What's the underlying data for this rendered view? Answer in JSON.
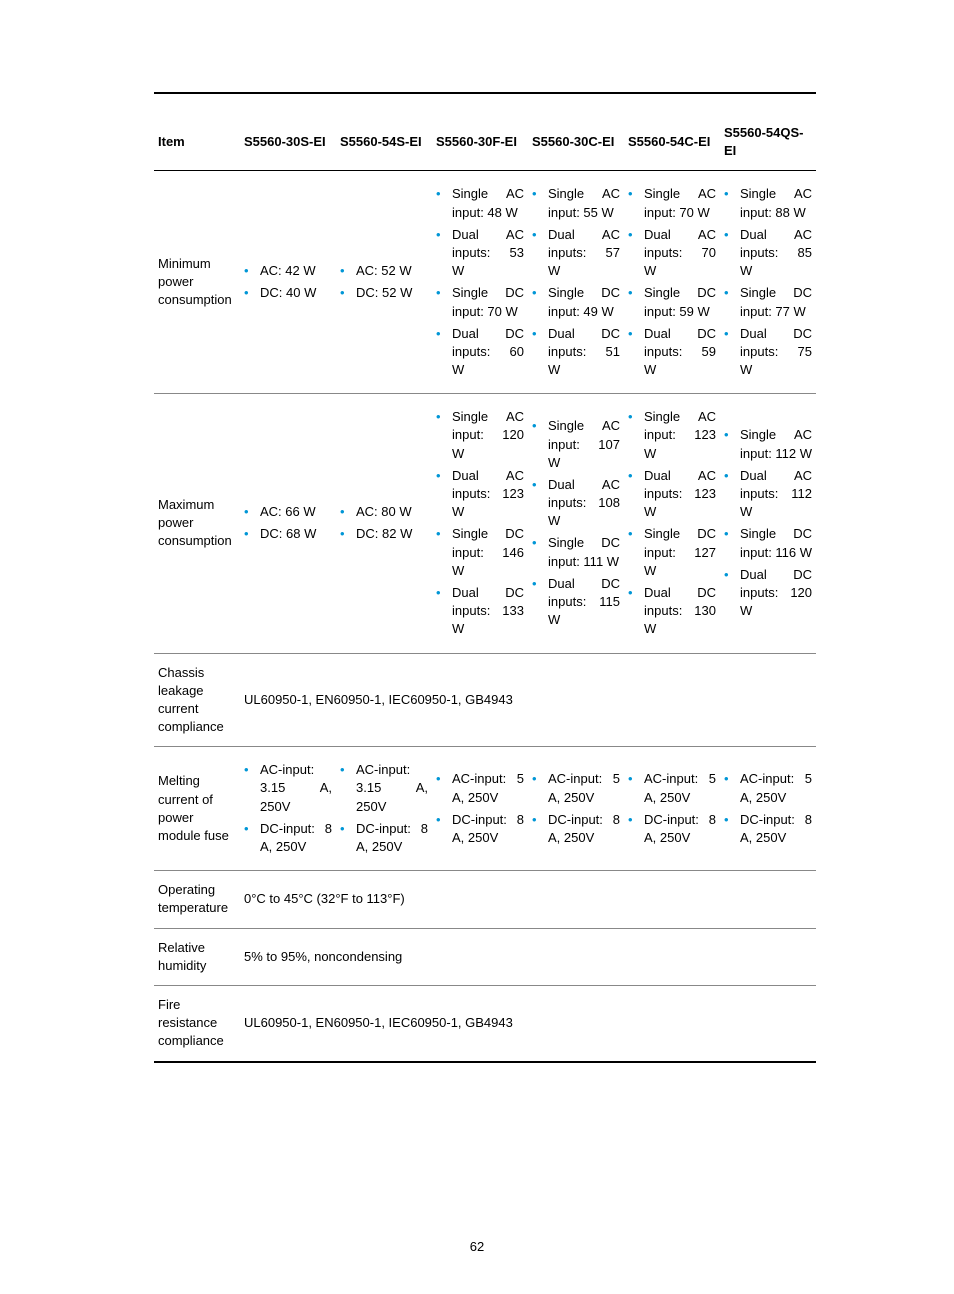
{
  "page_number": "62",
  "bullet_color": "#0096d6",
  "text_color": "#000000",
  "background_color": "#ffffff",
  "headers": {
    "item": "Item",
    "c1": "S5560-30S-EI",
    "c2": "S5560-54S-EI",
    "c3": "S5560-30F-EI",
    "c4": "S5560-30C-EI",
    "c5": "S5560-54C-EI",
    "c6": "S5560-54QS-EI"
  },
  "rows": {
    "min_power": {
      "label": "Minimum power consumption",
      "c1": [
        "AC: 42 W",
        "DC: 40 W"
      ],
      "c2": [
        "AC: 52 W",
        "DC: 52 W"
      ],
      "c3": [
        "Single AC input: 48 W",
        "Dual AC inputs: 53 W",
        "Single DC input: 70 W",
        "Dual DC inputs: 60 W"
      ],
      "c4": [
        "Single AC input: 55 W",
        "Dual AC inputs: 57 W",
        "Single DC input: 49 W",
        "Dual DC inputs: 51 W"
      ],
      "c5": [
        "Single AC input: 70 W",
        "Dual AC inputs: 70 W",
        "Single DC input: 59 W",
        "Dual DC inputs: 59 W"
      ],
      "c6": [
        "Single AC input: 88 W",
        "Dual AC inputs: 85 W",
        "Single DC input: 77 W",
        "Dual DC inputs: 75 W"
      ]
    },
    "max_power": {
      "label": "Maximum power consumption",
      "c1": [
        "AC: 66 W",
        "DC: 68 W"
      ],
      "c2": [
        "AC: 80 W",
        "DC: 82 W"
      ],
      "c3": [
        "Single AC input: 120 W",
        "Dual AC inputs: 123 W",
        "Single DC input: 146 W",
        "Dual DC inputs: 133 W"
      ],
      "c4": [
        "Single AC input: 107 W",
        "Dual AC inputs: 108 W",
        "Single DC input: 111 W",
        "Dual DC inputs: 115 W"
      ],
      "c5": [
        "Single AC input: 123 W",
        "Dual AC inputs: 123 W",
        "Single DC input: 127 W",
        "Dual DC inputs: 130 W"
      ],
      "c6": [
        "Single AC input: 112 W",
        "Dual AC inputs: 112 W",
        "Single DC input: 116 W",
        "Dual DC inputs: 120 W"
      ]
    },
    "leakage": {
      "label": "Chassis leakage current compliance",
      "value": "UL60950-1, EN60950-1, IEC60950-1, GB4943"
    },
    "fuse": {
      "label": "Melting current of power module fuse",
      "c1": [
        "AC-input: 3.15 A, 250V",
        "DC-input: 8 A, 250V"
      ],
      "c2": [
        "AC-input: 3.15 A, 250V",
        "DC-input: 8 A, 250V"
      ],
      "c3": [
        "AC-input: 5 A, 250V",
        "DC-input: 8 A, 250V"
      ],
      "c4": [
        "AC-input: 5 A, 250V",
        "DC-input: 8 A, 250V"
      ],
      "c5": [
        "AC-input: 5 A, 250V",
        "DC-input: 8 A, 250V"
      ],
      "c6": [
        "AC-input: 5 A, 250V",
        "DC-input: 8 A, 250V"
      ]
    },
    "temp": {
      "label": "Operating temperature",
      "value": "0°C to 45°C (32°F to 113°F)"
    },
    "humidity": {
      "label": "Relative humidity",
      "value": "5% to 95%, noncondensing"
    },
    "fire": {
      "label": "Fire resistance compliance",
      "value": "UL60950-1, EN60950-1, IEC60950-1, GB4943"
    }
  }
}
